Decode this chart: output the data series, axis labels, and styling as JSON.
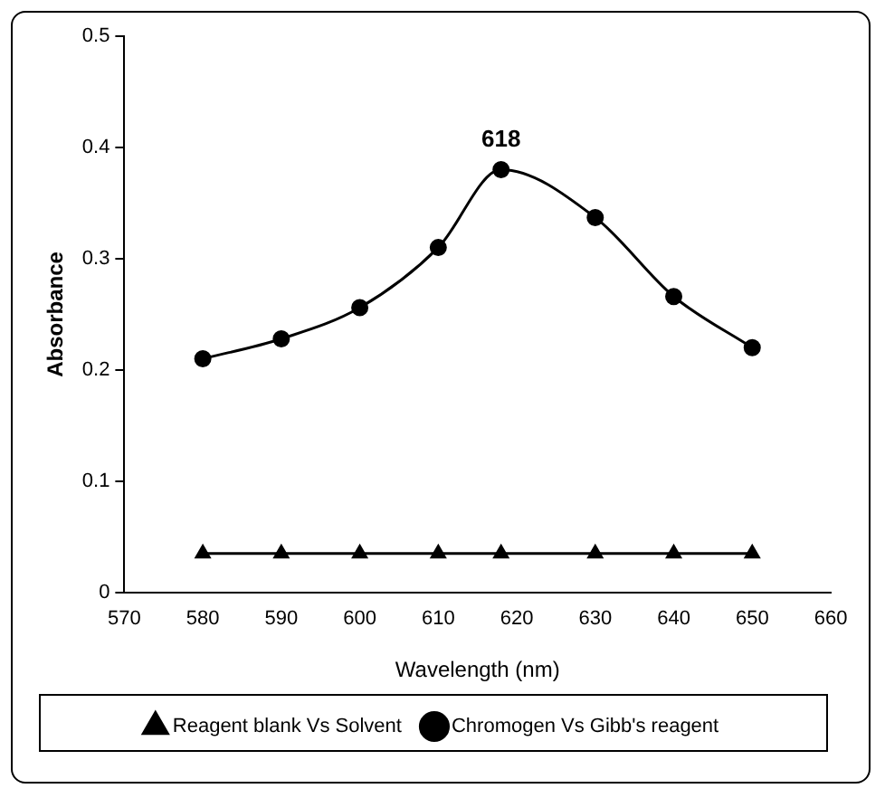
{
  "chart_data": {
    "type": "line",
    "xlabel": "Wavelength (nm)",
    "ylabel": "Absorbance",
    "x": [
      580,
      590,
      600,
      610,
      618,
      630,
      640,
      650
    ],
    "series": [
      {
        "name": "Reagent blank Vs Solvent",
        "color": "#000000",
        "marker": "triangle",
        "values": [
          0.035,
          0.035,
          0.035,
          0.035,
          0.035,
          0.035,
          0.035,
          0.035
        ]
      },
      {
        "name": "Chromogen Vs Gibb's reagent",
        "color": "#000000",
        "marker": "circle",
        "values": [
          0.21,
          0.228,
          0.256,
          0.31,
          0.38,
          0.337,
          0.266,
          0.22
        ]
      }
    ],
    "xlim": [
      570,
      660
    ],
    "xticks": [
      570,
      580,
      590,
      600,
      610,
      620,
      630,
      640,
      650,
      660
    ],
    "ylim": [
      0,
      0.5
    ],
    "yticks": [
      0,
      0.1,
      0.2,
      0.3,
      0.4,
      0.5
    ],
    "grid": false,
    "legend": "bottom",
    "line_style": "solid",
    "annotations": [
      {
        "text": "618",
        "x": 618,
        "y": 0.38
      }
    ]
  }
}
